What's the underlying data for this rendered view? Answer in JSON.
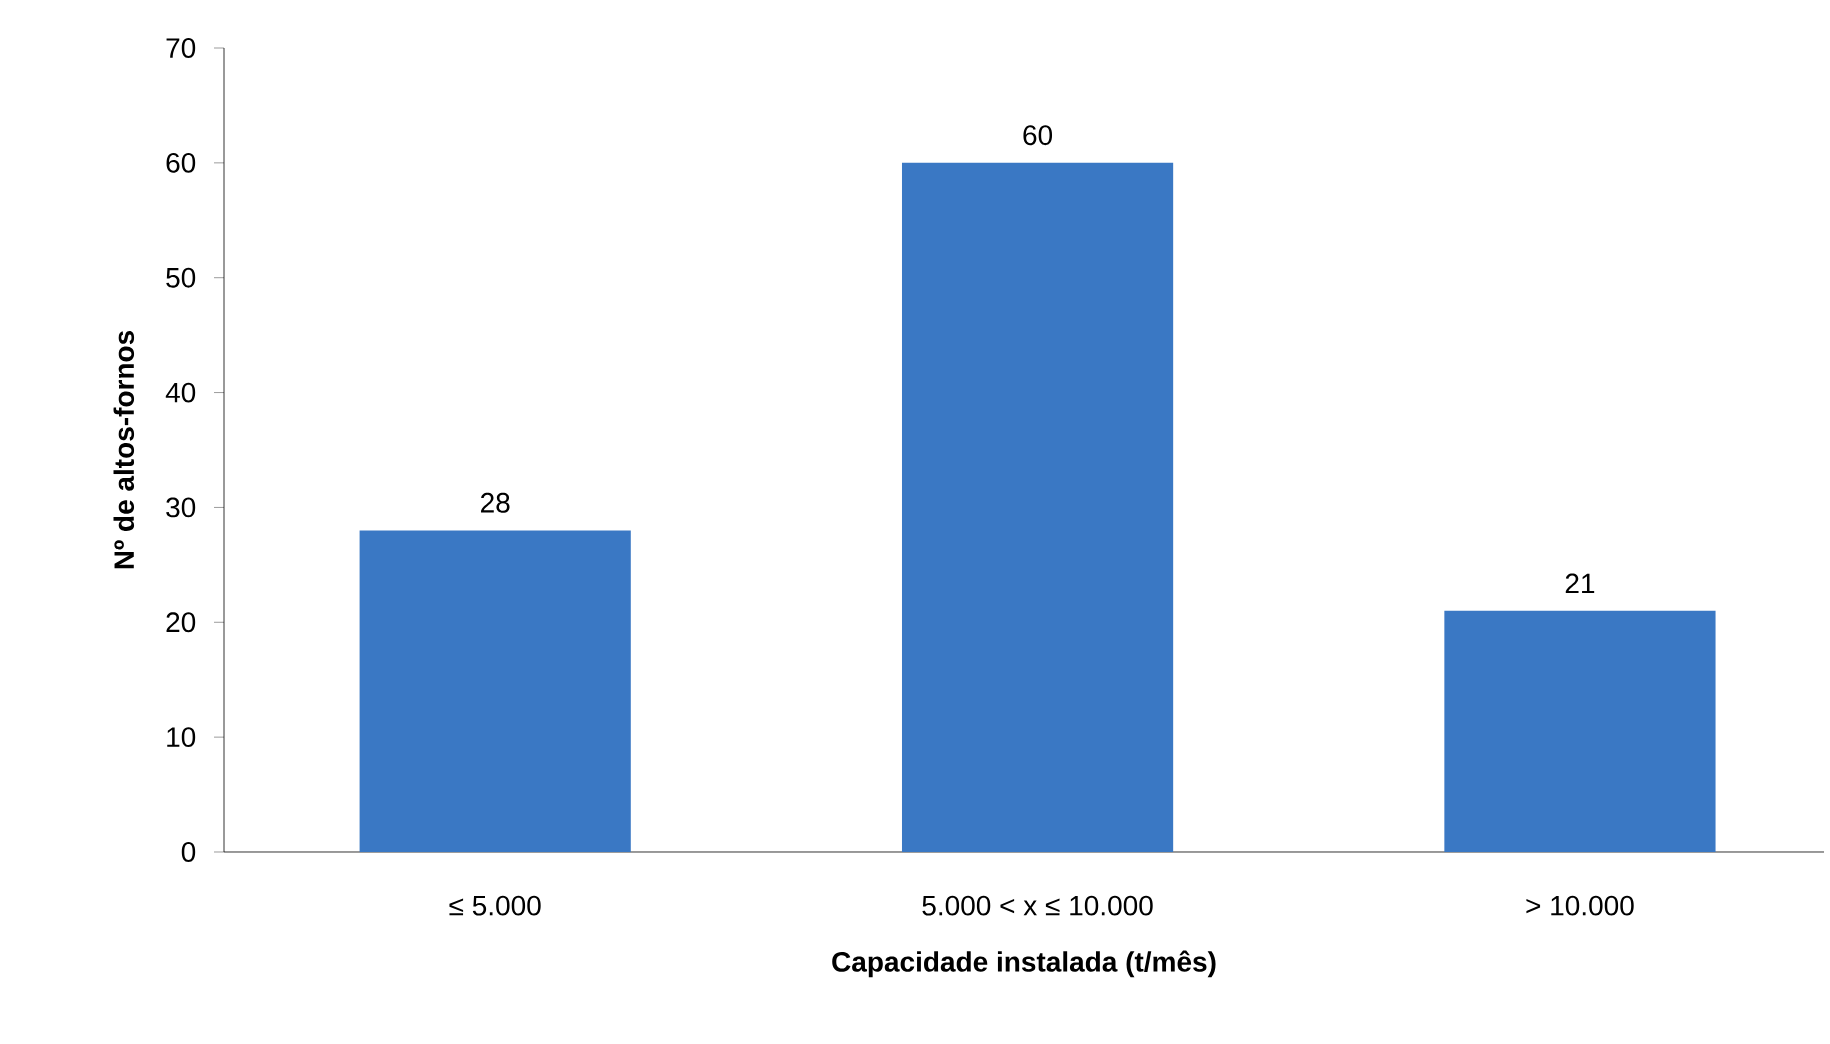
{
  "chart_data": {
    "type": "bar",
    "xlabel": "Capacidade instalada (t/mês)",
    "ylabel": "Nº de altos-fornos",
    "categories": [
      "≤ 5.000",
      "5.000 < x ≤ 10.000",
      "> 10.000"
    ],
    "values": [
      28,
      60,
      21
    ],
    "color": "#3a78c4",
    "ylim": [
      0,
      70
    ],
    "yticks": [
      0,
      10,
      20,
      30,
      40,
      50,
      60,
      70
    ],
    "data_labels": true,
    "grid": false
  }
}
